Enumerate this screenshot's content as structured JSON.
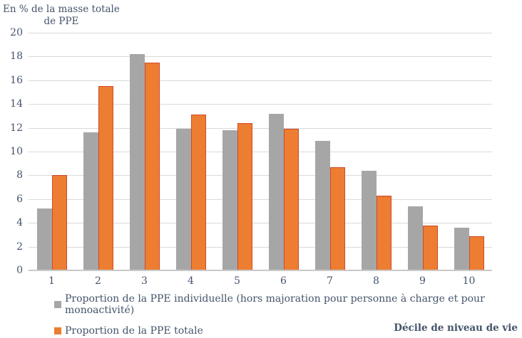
{
  "header": {
    "unit_label": "En % de la masse totale\nde PPE"
  },
  "colors": {
    "series_individuelle": "#A6A6A6",
    "series_totale": "#ED7D31",
    "series_totale_border": "#D0492C",
    "gridline": "#D9D9D9",
    "text": "#44546A"
  },
  "legend": {
    "individuelle_label": "Proportion de la PPE individuelle (hors majoration pour personne à charge et pour monoactivité)",
    "totale_label": "Proportion de la PPE totale"
  },
  "xaxis": {
    "title": "Décile de niveau de vie"
  },
  "chart_data": {
    "type": "bar",
    "title": "",
    "xlabel": "Décile de niveau de vie",
    "ylabel": "En % de la masse totale de PPE",
    "categories": [
      "1",
      "2",
      "3",
      "4",
      "5",
      "6",
      "7",
      "8",
      "9",
      "10"
    ],
    "series": [
      {
        "name": "Proportion de la PPE individuelle (hors majoration pour personne à charge et pour monoactivité)",
        "values": [
          5.2,
          11.6,
          18.2,
          11.9,
          11.8,
          13.2,
          10.9,
          8.4,
          5.4,
          3.6
        ]
      },
      {
        "name": "Proportion de la PPE totale",
        "values": [
          8.0,
          15.5,
          17.5,
          13.1,
          12.4,
          11.9,
          8.7,
          6.3,
          3.8,
          2.9
        ]
      }
    ],
    "ylim": [
      0,
      20
    ],
    "ytick_step": 2,
    "grid": true,
    "legend_position": "bottom-left"
  }
}
